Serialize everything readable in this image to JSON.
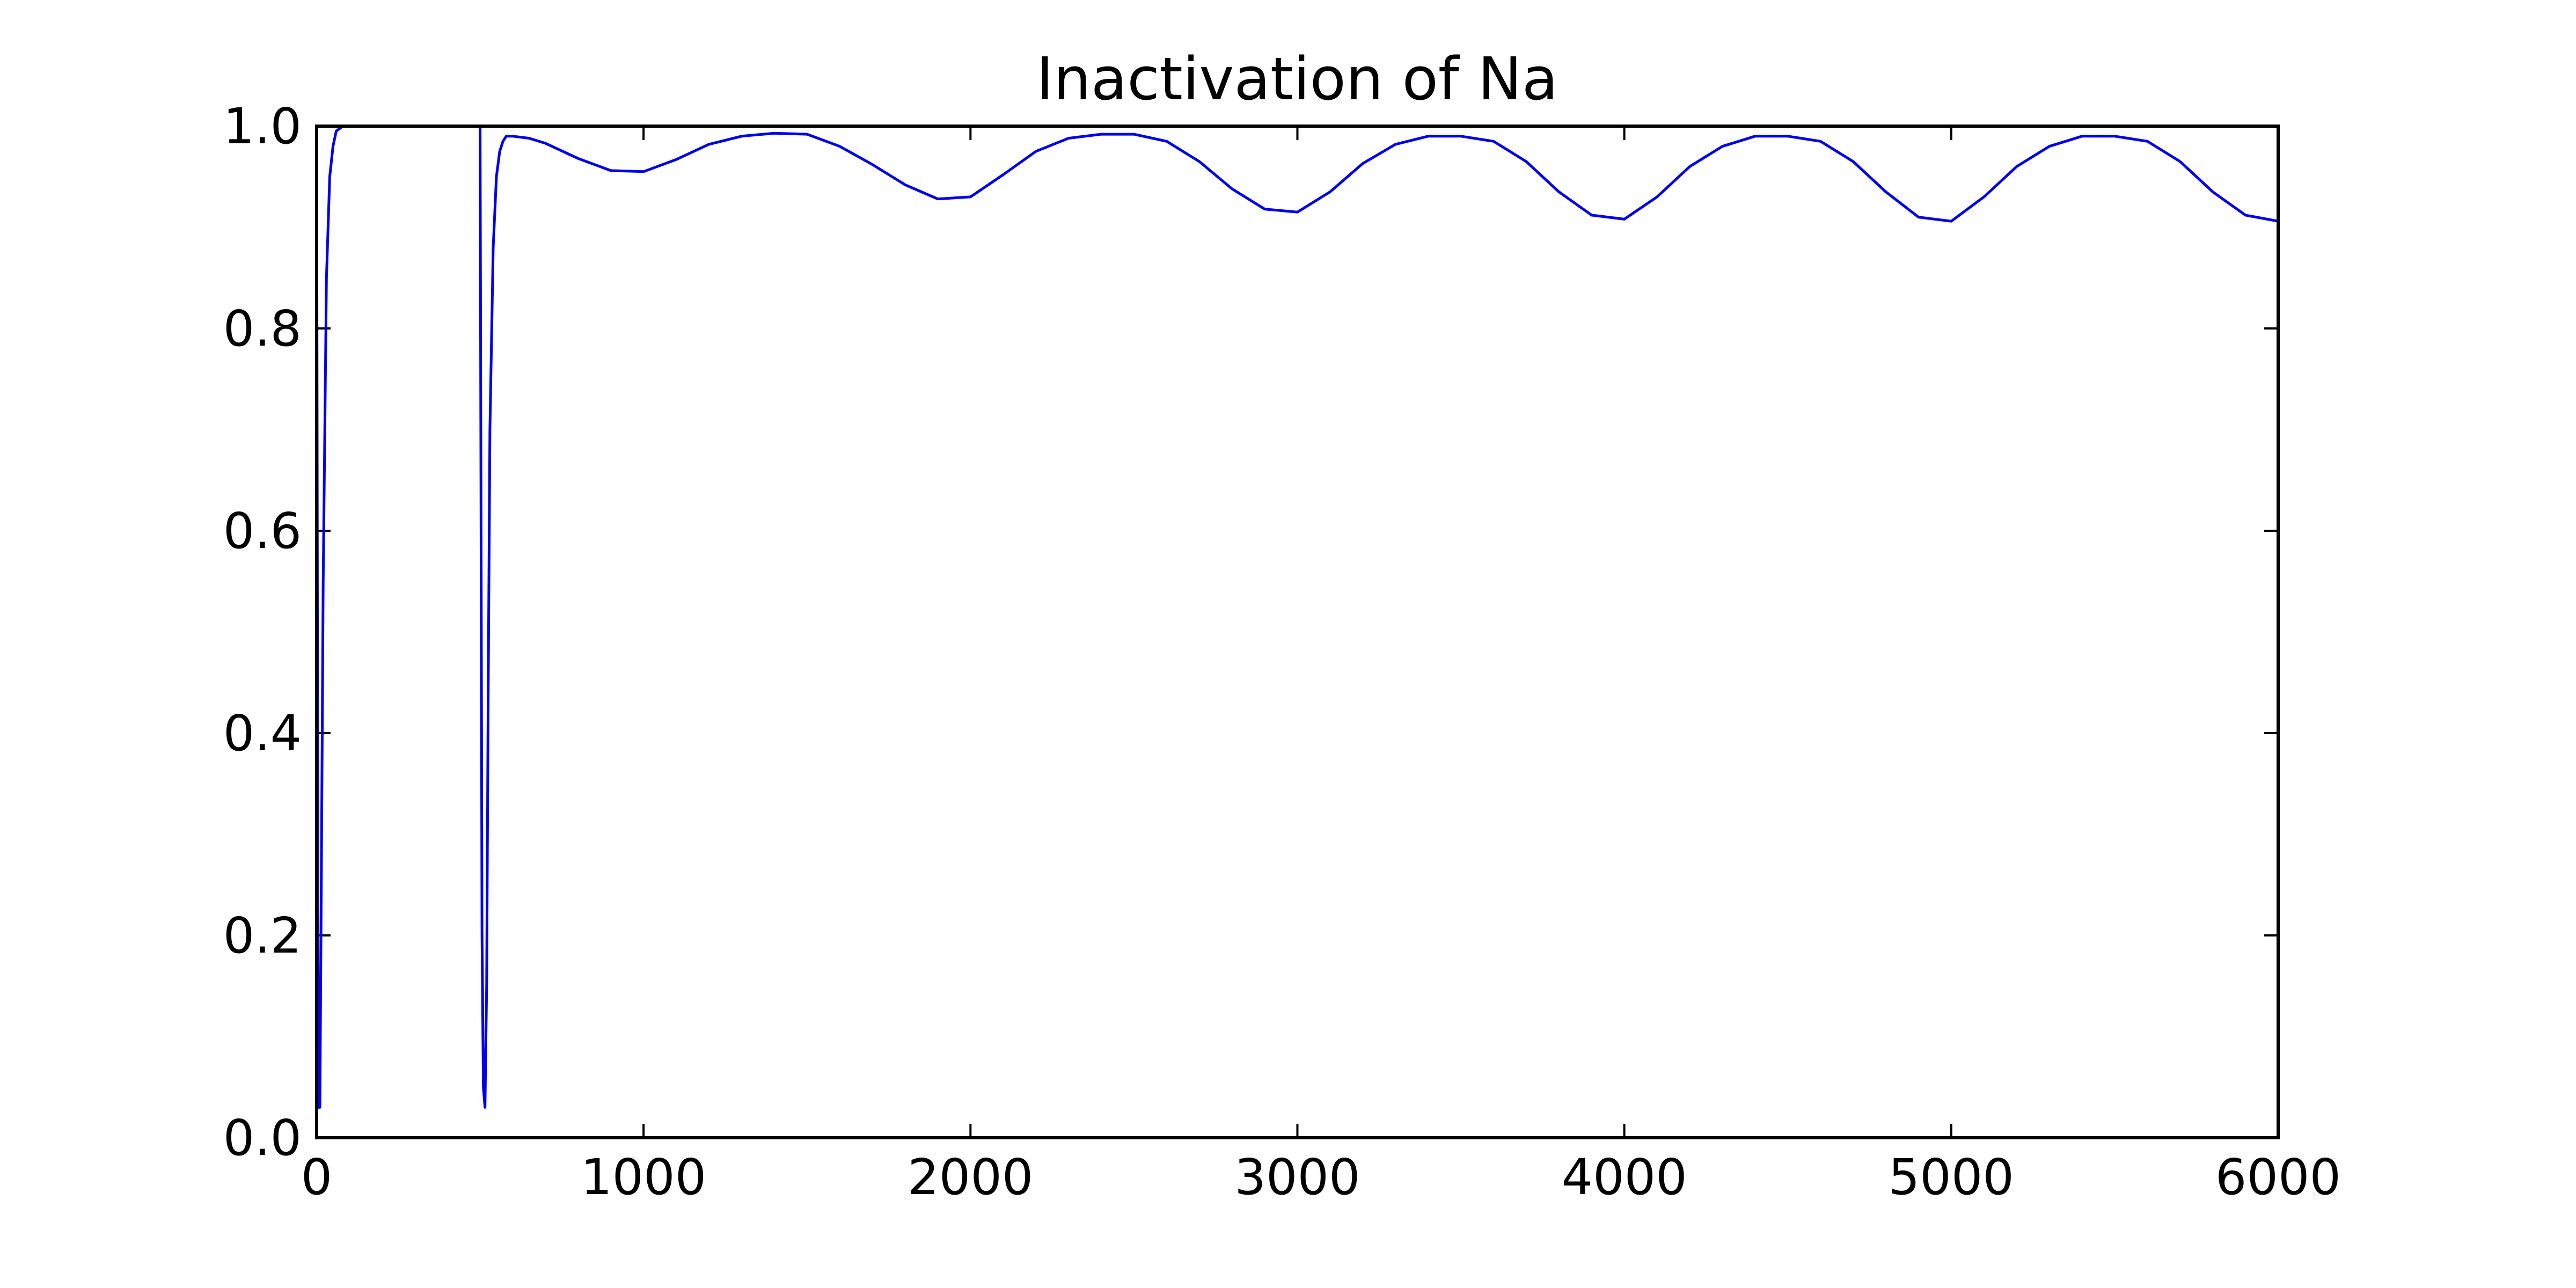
{
  "chart_data": {
    "type": "line",
    "title": "Inactivation of Na",
    "xlabel": "",
    "ylabel": "",
    "xlim": [
      0,
      6000
    ],
    "ylim": [
      0.0,
      1.0
    ],
    "xticks": [
      0,
      1000,
      2000,
      3000,
      4000,
      5000,
      6000
    ],
    "xtick_labels": [
      "0",
      "1000",
      "2000",
      "3000",
      "4000",
      "5000",
      "6000"
    ],
    "yticks": [
      0.0,
      0.2,
      0.4,
      0.6,
      0.8,
      1.0
    ],
    "ytick_labels": [
      "0.0",
      "0.2",
      "0.4",
      "0.6",
      "0.8",
      "1.0"
    ],
    "grid": false,
    "legend": "none",
    "series_color": "#0000ee",
    "series": [
      {
        "x": [
          0,
          5,
          10,
          20,
          30,
          40,
          50,
          60,
          80,
          100,
          500,
          503,
          506,
          510,
          515,
          520,
          525,
          530,
          540,
          550,
          560,
          570,
          580,
          600,
          650,
          700,
          800,
          900,
          1000,
          1100,
          1200,
          1300,
          1400,
          1500,
          1600,
          1700,
          1800,
          1900,
          2000,
          2100,
          2200,
          2300,
          2400,
          2500,
          2600,
          2700,
          2800,
          2900,
          3000,
          3100,
          3200,
          3300,
          3400,
          3500,
          3600,
          3700,
          3800,
          3900,
          4000,
          4100,
          4200,
          4300,
          4400,
          4500,
          4600,
          4700,
          4800,
          4900,
          5000,
          5100,
          5200,
          5300,
          5400,
          5500,
          5600,
          5700,
          5800,
          5900,
          6000
        ],
        "y": [
          1.0,
          0.03,
          0.03,
          0.55,
          0.85,
          0.95,
          0.98,
          0.995,
          1.0,
          1.0,
          1.0,
          0.6,
          0.2,
          0.05,
          0.03,
          0.15,
          0.45,
          0.7,
          0.88,
          0.95,
          0.975,
          0.985,
          0.99,
          0.99,
          0.988,
          0.983,
          0.968,
          0.956,
          0.955,
          0.967,
          0.982,
          0.99,
          0.993,
          0.992,
          0.98,
          0.962,
          0.942,
          0.928,
          0.93,
          0.952,
          0.975,
          0.988,
          0.992,
          0.992,
          0.985,
          0.965,
          0.938,
          0.918,
          0.915,
          0.935,
          0.963,
          0.982,
          0.99,
          0.99,
          0.985,
          0.965,
          0.935,
          0.912,
          0.908,
          0.93,
          0.96,
          0.98,
          0.99,
          0.99,
          0.985,
          0.965,
          0.935,
          0.91,
          0.906,
          0.93,
          0.96,
          0.98,
          0.99,
          0.99,
          0.985,
          0.965,
          0.935,
          0.912,
          0.906
        ]
      }
    ]
  }
}
